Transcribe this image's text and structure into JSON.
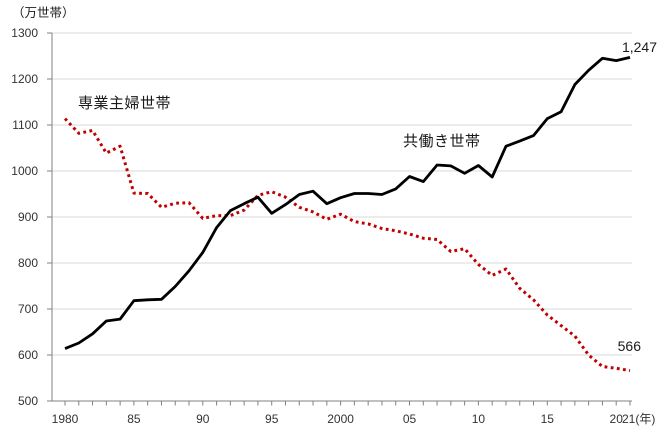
{
  "chart_data": {
    "type": "line",
    "unit_label": "（万世帯）",
    "x": [
      1980,
      1981,
      1982,
      1983,
      1984,
      1985,
      1986,
      1987,
      1988,
      1989,
      1990,
      1991,
      1992,
      1993,
      1994,
      1995,
      1996,
      1997,
      1998,
      1999,
      2000,
      2001,
      2002,
      2003,
      2004,
      2005,
      2006,
      2007,
      2008,
      2009,
      2010,
      2011,
      2012,
      2013,
      2014,
      2015,
      2016,
      2017,
      2018,
      2019,
      2020,
      2021
    ],
    "series": [
      {
        "name": "専業主婦世帯",
        "color": "#c00000",
        "line_style": "dotted",
        "values": [
          1114,
          1082,
          1088,
          1039,
          1054,
          952,
          951,
          921,
          930,
          931,
          897,
          903,
          903,
          915,
          947,
          955,
          943,
          921,
          911,
          895,
          906,
          890,
          885,
          875,
          870,
          863,
          854,
          851,
          825,
          831,
          797,
          773,
          787,
          745,
          720,
          687,
          664,
          641,
          600,
          575,
          571,
          566
        ]
      },
      {
        "name": "共働き世帯",
        "color": "#000000",
        "line_style": "solid",
        "values": [
          614,
          626,
          646,
          674,
          678,
          718,
          720,
          721,
          749,
          783,
          823,
          877,
          914,
          929,
          943,
          908,
          927,
          949,
          956,
          929,
          942,
          951,
          951,
          949,
          961,
          988,
          977,
          1013,
          1011,
          995,
          1012,
          987,
          1054,
          1065,
          1077,
          1114,
          1129,
          1188,
          1219,
          1245,
          1240,
          1247
        ]
      }
    ],
    "end_labels": {
      "tomobataraki": "1,247",
      "sengyo": "566"
    },
    "ylim": [
      500,
      1300
    ],
    "yticks": [
      500,
      600,
      700,
      800,
      900,
      1000,
      1100,
      1200,
      1300
    ],
    "xtick_labels": [
      {
        "year": 1980,
        "label": "1980"
      },
      {
        "year": 1985,
        "label": "85"
      },
      {
        "year": 1990,
        "label": "90"
      },
      {
        "year": 1995,
        "label": "95"
      },
      {
        "year": 2000,
        "label": "2000"
      },
      {
        "year": 2005,
        "label": "05"
      },
      {
        "year": 2010,
        "label": "10"
      },
      {
        "year": 2015,
        "label": "15"
      },
      {
        "year": 2020,
        "label": "20"
      },
      {
        "year": 2021,
        "label": "21(年)"
      }
    ],
    "grid": "horizontal",
    "legend": "inline-labels",
    "colors": {
      "grid": "#d9d9d9",
      "axis": "#808080",
      "tick_text": "#333333",
      "label_text": "#1a1a1a"
    }
  }
}
